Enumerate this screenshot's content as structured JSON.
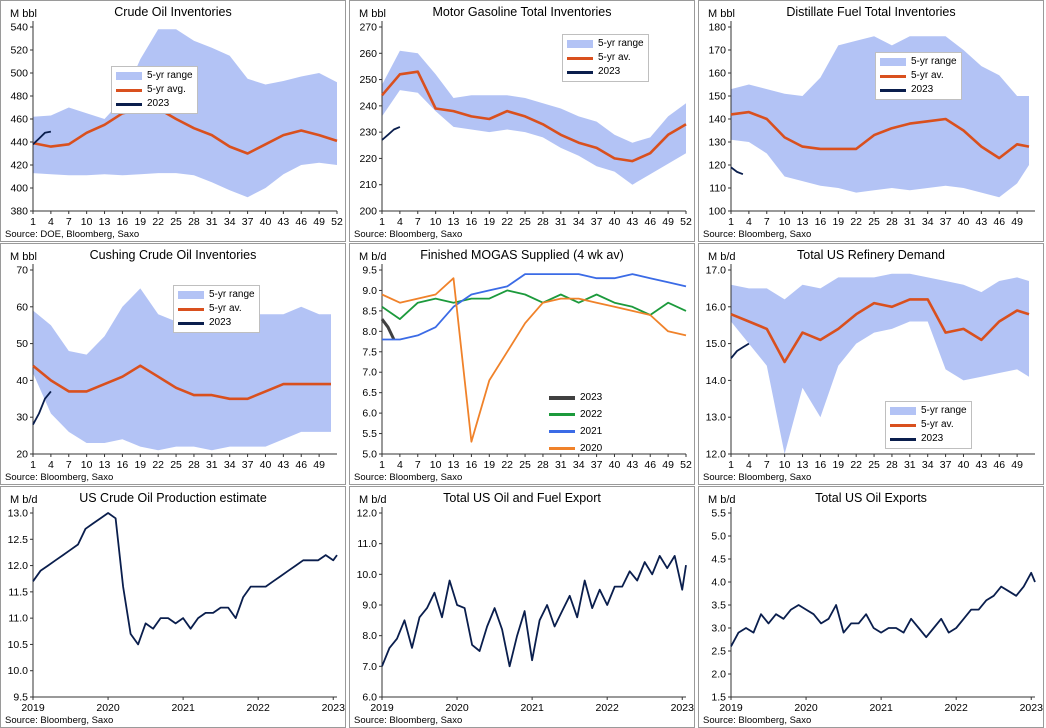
{
  "colors": {
    "band": "#b3c3f5",
    "avg": "#d9501e",
    "cur": "#0a1e4d",
    "g2023": "#404040",
    "g2022": "#1c9a3c",
    "g2021": "#3b6be6",
    "g2020": "#f0822a"
  },
  "panels": [
    {
      "id": "crude",
      "title": "Crude Oil Inventories",
      "unit": "M bbl",
      "source": "Source: DOE, Bloomberg, Saxo",
      "legend": [
        "5-yr range",
        "5-yr avg.",
        "2023"
      ]
    },
    {
      "id": "gasoline",
      "title": "Motor Gasoline Total Inventories",
      "unit": "M bbl",
      "source": "Source: Bloomberg, Saxo",
      "legend": [
        "5-yr range",
        "5-yr av.",
        "2023"
      ]
    },
    {
      "id": "distillate",
      "title": "Distillate Fuel Total Inventories",
      "unit": "M bbl",
      "source": "Source: Bloomberg, Saxo",
      "legend": [
        "5-yr range",
        "5-yr av.",
        "2023"
      ]
    },
    {
      "id": "cushing",
      "title": "Cushing Crude Oil Inventories",
      "unit": "M bbl",
      "source": "Source: Bloomberg, Saxo",
      "legend": [
        "5-yr range",
        "5-yr av.",
        "2023"
      ]
    },
    {
      "id": "mogas",
      "title": "Finished MOGAS Supplied (4 wk av)",
      "unit": "M b/d",
      "source": "Source: Bloomberg, Saxo",
      "legend": [
        "2023",
        "2022",
        "2021",
        "2020"
      ]
    },
    {
      "id": "refinery",
      "title": "Total US Refinery Demand",
      "unit": "M b/d",
      "source": "Source: Bloomberg, Saxo",
      "legend": [
        "5-yr range",
        "5-yr av.",
        "2023"
      ]
    },
    {
      "id": "production",
      "title": "US Crude Oil Production estimate",
      "unit": "M b/d",
      "source": "Source: Bloomberg, Saxo",
      "legend": []
    },
    {
      "id": "fuelexport",
      "title": "Total US Oil and Fuel Export",
      "unit": "M b/d",
      "source": "Source: Bloomberg, Saxo",
      "legend": []
    },
    {
      "id": "oilexports",
      "title": "Total US Oil Exports",
      "unit": "M b/d",
      "source": "Source: Bloomberg, Saxo",
      "legend": []
    }
  ],
  "chart_data": [
    {
      "id": "crude",
      "type": "area",
      "xlabel": "",
      "ylabel": "M bbl",
      "ylim": [
        380,
        540
      ],
      "yticks": [
        380,
        400,
        420,
        440,
        460,
        480,
        500,
        520,
        540
      ],
      "xticks": [
        "1",
        "4",
        "7",
        "10",
        "13",
        "16",
        "19",
        "22",
        "25",
        "28",
        "31",
        "34",
        "37",
        "40",
        "43",
        "46",
        "49",
        "52"
      ],
      "x": [
        1,
        4,
        7,
        10,
        13,
        16,
        19,
        22,
        25,
        28,
        31,
        34,
        37,
        40,
        43,
        46,
        49,
        52
      ],
      "range_low": [
        413,
        412,
        411,
        411,
        412,
        411,
        412,
        413,
        413,
        411,
        405,
        398,
        392,
        400,
        412,
        420,
        422,
        420
      ],
      "range_high": [
        462,
        463,
        470,
        465,
        460,
        477,
        512,
        538,
        538,
        528,
        522,
        515,
        495,
        490,
        493,
        497,
        500,
        492
      ],
      "series": [
        {
          "name": "5-yr avg.",
          "values": [
            439,
            436,
            438,
            448,
            455,
            465,
            468,
            469,
            460,
            452,
            446,
            436,
            430,
            438,
            446,
            450,
            446,
            441
          ]
        },
        {
          "name": "2023",
          "x": [
            1,
            2,
            3,
            4
          ],
          "values": [
            438,
            443,
            448,
            449
          ]
        }
      ]
    },
    {
      "id": "gasoline",
      "type": "area",
      "xlabel": "",
      "ylabel": "M bbl",
      "ylim": [
        200,
        270
      ],
      "yticks": [
        200,
        210,
        220,
        230,
        240,
        250,
        260,
        270
      ],
      "xticks": [
        "1",
        "4",
        "7",
        "10",
        "13",
        "16",
        "19",
        "22",
        "25",
        "28",
        "31",
        "34",
        "37",
        "40",
        "43",
        "46",
        "49",
        "52"
      ],
      "x": [
        1,
        4,
        7,
        10,
        13,
        16,
        19,
        22,
        25,
        28,
        31,
        34,
        37,
        40,
        43,
        46,
        49,
        52
      ],
      "range_low": [
        236,
        246,
        245,
        238,
        232,
        231,
        230,
        231,
        230,
        228,
        224,
        221,
        217,
        215,
        210,
        214,
        218,
        222
      ],
      "range_high": [
        248,
        261,
        260,
        252,
        243,
        244,
        244,
        244,
        243,
        241,
        239,
        236,
        234,
        229,
        226,
        228,
        236,
        241
      ],
      "series": [
        {
          "name": "5-yr av.",
          "values": [
            244,
            252,
            253,
            239,
            238,
            236,
            235,
            238,
            236,
            233,
            229,
            226,
            224,
            220,
            219,
            222,
            229,
            233
          ]
        },
        {
          "name": "2023",
          "x": [
            1,
            2,
            3,
            4
          ],
          "values": [
            227,
            229,
            231,
            232
          ]
        }
      ]
    },
    {
      "id": "distillate",
      "type": "area",
      "xlabel": "",
      "ylabel": "M bbl",
      "ylim": [
        100,
        180
      ],
      "yticks": [
        100,
        110,
        120,
        130,
        140,
        150,
        160,
        170,
        180
      ],
      "xticks": [
        "1",
        "4",
        "7",
        "10",
        "13",
        "16",
        "19",
        "22",
        "25",
        "28",
        "31",
        "34",
        "37",
        "40",
        "43",
        "46",
        "49"
      ],
      "x": [
        1,
        4,
        7,
        10,
        13,
        16,
        19,
        22,
        25,
        28,
        31,
        34,
        37,
        40,
        43,
        46,
        49,
        51
      ],
      "range_low": [
        131,
        130,
        125,
        115,
        113,
        111,
        110,
        108,
        109,
        110,
        109,
        110,
        111,
        110,
        108,
        106,
        112,
        120
      ],
      "range_high": [
        153,
        155,
        153,
        151,
        150,
        158,
        172,
        174,
        176,
        172,
        176,
        176,
        176,
        170,
        163,
        159,
        150,
        150
      ],
      "series": [
        {
          "name": "5-yr av.",
          "values": [
            142,
            143,
            140,
            132,
            128,
            127,
            127,
            127,
            133,
            136,
            138,
            139,
            140,
            135,
            128,
            123,
            129,
            128
          ]
        },
        {
          "name": "2023",
          "x": [
            1,
            2,
            3
          ],
          "values": [
            119,
            117,
            116
          ]
        }
      ]
    },
    {
      "id": "cushing",
      "type": "area",
      "xlabel": "",
      "ylabel": "M bbl",
      "ylim": [
        20,
        70
      ],
      "yticks": [
        20,
        30,
        40,
        50,
        60,
        70
      ],
      "xticks": [
        "1",
        "4",
        "7",
        "10",
        "13",
        "16",
        "19",
        "22",
        "25",
        "28",
        "31",
        "34",
        "37",
        "40",
        "43",
        "46",
        "49"
      ],
      "x": [
        1,
        4,
        7,
        10,
        13,
        16,
        19,
        22,
        25,
        28,
        31,
        34,
        37,
        40,
        43,
        46,
        49,
        51
      ],
      "range_low": [
        42,
        31,
        26,
        23,
        23,
        24,
        22,
        21,
        22,
        22,
        21,
        22,
        22,
        22,
        24,
        26,
        26,
        26
      ],
      "range_high": [
        59,
        55,
        48,
        47,
        52,
        60,
        65,
        58,
        56,
        55,
        56,
        56,
        58,
        58,
        58,
        60,
        58,
        58
      ],
      "series": [
        {
          "name": "5-yr av.",
          "values": [
            44,
            40,
            37,
            37,
            39,
            41,
            44,
            41,
            38,
            36,
            36,
            35,
            35,
            37,
            39,
            39,
            39,
            39
          ]
        },
        {
          "name": "2023",
          "x": [
            1,
            2,
            3,
            4
          ],
          "values": [
            28,
            31,
            35,
            37
          ]
        }
      ]
    },
    {
      "id": "mogas",
      "type": "line",
      "xlabel": "",
      "ylabel": "M b/d",
      "ylim": [
        5.0,
        9.5
      ],
      "yticks": [
        5.0,
        5.5,
        6.0,
        6.5,
        7.0,
        7.5,
        8.0,
        8.5,
        9.0,
        9.5
      ],
      "xticks": [
        "1",
        "4",
        "7",
        "10",
        "13",
        "16",
        "19",
        "22",
        "25",
        "28",
        "31",
        "34",
        "37",
        "40",
        "43",
        "46",
        "49",
        "52"
      ],
      "x": [
        1,
        4,
        7,
        10,
        13,
        16,
        19,
        22,
        25,
        28,
        31,
        34,
        37,
        40,
        43,
        46,
        49,
        52
      ],
      "series": [
        {
          "name": "2023",
          "x": [
            1,
            2,
            3
          ],
          "values": [
            8.3,
            8.1,
            7.8
          ]
        },
        {
          "name": "2022",
          "values": [
            8.6,
            8.3,
            8.7,
            8.8,
            8.7,
            8.8,
            8.8,
            9.0,
            8.9,
            8.7,
            8.9,
            8.7,
            8.9,
            8.7,
            8.6,
            8.4,
            8.7,
            8.5
          ]
        },
        {
          "name": "2021",
          "values": [
            7.8,
            7.8,
            7.9,
            8.1,
            8.6,
            8.9,
            9.0,
            9.1,
            9.4,
            9.4,
            9.4,
            9.4,
            9.3,
            9.3,
            9.4,
            9.3,
            9.2,
            9.1
          ]
        },
        {
          "name": "2020",
          "values": [
            8.9,
            8.7,
            8.8,
            8.9,
            9.3,
            5.3,
            6.8,
            7.5,
            8.2,
            8.7,
            8.8,
            8.8,
            8.7,
            8.6,
            8.5,
            8.4,
            8.0,
            7.9
          ]
        }
      ]
    },
    {
      "id": "refinery",
      "type": "area",
      "xlabel": "",
      "ylabel": "M b/d",
      "ylim": [
        12.0,
        17.0
      ],
      "yticks": [
        12.0,
        13.0,
        14.0,
        15.0,
        16.0,
        17.0
      ],
      "xticks": [
        "1",
        "4",
        "7",
        "10",
        "13",
        "16",
        "19",
        "22",
        "25",
        "28",
        "31",
        "34",
        "37",
        "40",
        "43",
        "46",
        "49"
      ],
      "x": [
        1,
        4,
        7,
        10,
        13,
        16,
        19,
        22,
        25,
        28,
        31,
        34,
        37,
        40,
        43,
        46,
        49,
        51
      ],
      "range_low": [
        15.6,
        15.0,
        14.4,
        12.0,
        13.8,
        13.0,
        14.4,
        15.0,
        15.3,
        15.4,
        15.6,
        15.6,
        14.3,
        14.0,
        14.1,
        14.2,
        14.3,
        14.1
      ],
      "range_high": [
        16.6,
        16.5,
        16.5,
        16.2,
        16.6,
        16.5,
        16.8,
        16.8,
        16.8,
        16.9,
        16.9,
        16.8,
        16.7,
        16.6,
        16.4,
        16.7,
        16.8,
        16.7
      ],
      "series": [
        {
          "name": "5-yr av.",
          "values": [
            15.8,
            15.6,
            15.4,
            14.5,
            15.3,
            15.1,
            15.4,
            15.8,
            16.1,
            16.0,
            16.2,
            16.2,
            15.3,
            15.4,
            15.1,
            15.6,
            15.9,
            15.8
          ]
        },
        {
          "name": "2023",
          "x": [
            1,
            2,
            3,
            4
          ],
          "values": [
            14.6,
            14.8,
            14.9,
            15.0
          ]
        }
      ]
    },
    {
      "id": "production",
      "type": "line",
      "xlabel": "",
      "ylabel": "M b/d",
      "ylim": [
        9.5,
        13.0
      ],
      "yticks": [
        9.5,
        10.0,
        10.5,
        11.0,
        11.5,
        12.0,
        12.5,
        13.0
      ],
      "xticks": [
        "2019",
        "2020",
        "2021",
        "2022",
        "2023"
      ],
      "x": [
        2019.0,
        2019.1,
        2019.2,
        2019.3,
        2019.4,
        2019.5,
        2019.6,
        2019.7,
        2019.8,
        2019.9,
        2020.0,
        2020.1,
        2020.2,
        2020.3,
        2020.4,
        2020.5,
        2020.6,
        2020.7,
        2020.8,
        2020.9,
        2021.0,
        2021.1,
        2021.2,
        2021.3,
        2021.4,
        2021.5,
        2021.6,
        2021.7,
        2021.8,
        2021.9,
        2022.0,
        2022.1,
        2022.2,
        2022.3,
        2022.4,
        2022.5,
        2022.6,
        2022.7,
        2022.8,
        2022.9,
        2023.0,
        2023.05
      ],
      "series": [
        {
          "name": "",
          "values": [
            11.7,
            11.9,
            12.0,
            12.1,
            12.2,
            12.3,
            12.4,
            12.7,
            12.8,
            12.9,
            13.0,
            12.9,
            11.6,
            10.7,
            10.5,
            10.9,
            10.8,
            11.0,
            11.0,
            10.9,
            11.0,
            10.8,
            11.0,
            11.1,
            11.1,
            11.2,
            11.2,
            11.0,
            11.4,
            11.6,
            11.6,
            11.6,
            11.7,
            11.8,
            11.9,
            12.0,
            12.1,
            12.1,
            12.1,
            12.2,
            12.1,
            12.2
          ]
        }
      ]
    },
    {
      "id": "fuelexport",
      "type": "line",
      "xlabel": "",
      "ylabel": "M b/d",
      "ylim": [
        6.0,
        12.0
      ],
      "yticks": [
        6.0,
        7.0,
        8.0,
        9.0,
        10.0,
        11.0,
        12.0
      ],
      "xticks": [
        "2019",
        "2020",
        "2021",
        "2022",
        "2023"
      ],
      "x": [
        2019.0,
        2019.1,
        2019.2,
        2019.3,
        2019.4,
        2019.5,
        2019.6,
        2019.7,
        2019.8,
        2019.9,
        2020.0,
        2020.1,
        2020.2,
        2020.3,
        2020.4,
        2020.5,
        2020.6,
        2020.7,
        2020.8,
        2020.9,
        2021.0,
        2021.1,
        2021.2,
        2021.3,
        2021.4,
        2021.5,
        2021.6,
        2021.7,
        2021.8,
        2021.9,
        2022.0,
        2022.1,
        2022.2,
        2022.3,
        2022.4,
        2022.5,
        2022.6,
        2022.7,
        2022.8,
        2022.9,
        2023.0,
        2023.05
      ],
      "series": [
        {
          "name": "",
          "values": [
            7.0,
            7.6,
            7.9,
            8.5,
            7.6,
            8.6,
            8.9,
            9.4,
            8.6,
            9.8,
            9.0,
            8.9,
            7.7,
            7.5,
            8.3,
            8.9,
            8.2,
            7.0,
            8.0,
            8.8,
            7.2,
            8.5,
            9.0,
            8.3,
            8.8,
            9.3,
            8.6,
            9.8,
            8.9,
            9.5,
            9.0,
            9.6,
            9.6,
            10.1,
            9.8,
            10.4,
            10.0,
            10.6,
            10.2,
            10.6,
            9.5,
            10.3
          ]
        }
      ]
    },
    {
      "id": "oilexports",
      "type": "line",
      "xlabel": "",
      "ylabel": "M b/d",
      "ylim": [
        1.5,
        5.5
      ],
      "yticks": [
        1.5,
        2.0,
        2.5,
        3.0,
        3.5,
        4.0,
        4.5,
        5.0,
        5.5
      ],
      "xticks": [
        "2019",
        "2020",
        "2021",
        "2022",
        "2023"
      ],
      "x": [
        2019.0,
        2019.1,
        2019.2,
        2019.3,
        2019.4,
        2019.5,
        2019.6,
        2019.7,
        2019.8,
        2019.9,
        2020.0,
        2020.1,
        2020.2,
        2020.3,
        2020.4,
        2020.5,
        2020.6,
        2020.7,
        2020.8,
        2020.9,
        2021.0,
        2021.1,
        2021.2,
        2021.3,
        2021.4,
        2021.5,
        2021.6,
        2021.7,
        2021.8,
        2021.9,
        2022.0,
        2022.1,
        2022.2,
        2022.3,
        2022.4,
        2022.5,
        2022.6,
        2022.7,
        2022.8,
        2022.9,
        2023.0,
        2023.05
      ],
      "series": [
        {
          "name": "",
          "values": [
            2.6,
            2.9,
            3.0,
            2.9,
            3.3,
            3.1,
            3.3,
            3.2,
            3.4,
            3.5,
            3.4,
            3.3,
            3.1,
            3.2,
            3.5,
            2.9,
            3.1,
            3.1,
            3.3,
            3.0,
            2.9,
            3.0,
            3.0,
            2.9,
            3.2,
            3.0,
            2.8,
            3.0,
            3.2,
            2.9,
            3.0,
            3.2,
            3.4,
            3.4,
            3.6,
            3.7,
            3.9,
            3.8,
            3.7,
            3.9,
            4.2,
            4.0
          ]
        }
      ]
    }
  ]
}
